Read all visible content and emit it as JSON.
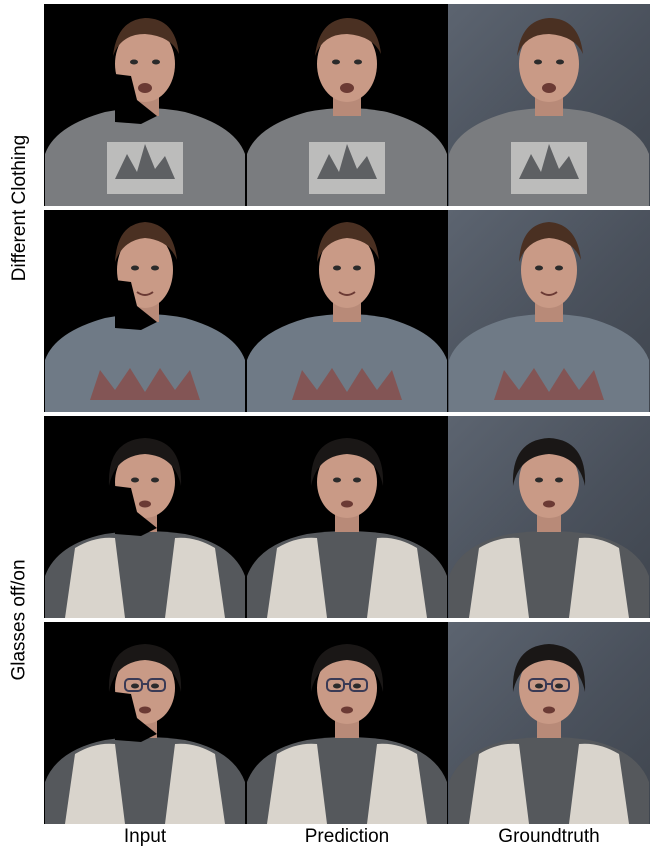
{
  "row_groups": [
    {
      "label": "Different Clothing"
    },
    {
      "label": "Glasses off/on"
    }
  ],
  "columns": [
    {
      "label": "Input"
    },
    {
      "label": "Prediction"
    },
    {
      "label": "Groundtruth"
    }
  ],
  "colors": {
    "skin": "#c99a86",
    "hair_man": "#4a3022",
    "hair_woman": "#1a1716",
    "shirt_grey": "#7a7c7f",
    "shirt_blue": "#6f7a86",
    "print_red": "#8a4a44",
    "cardigan": "#d9d4cc",
    "blouse": "#55585c",
    "gt_background": "#4f5660"
  }
}
